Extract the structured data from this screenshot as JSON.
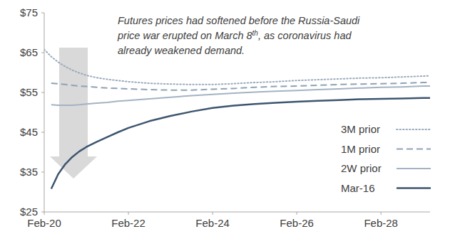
{
  "chart_data": {
    "type": "line",
    "annotation": [
      "Futures prices had softened before the Russia-Saudi",
      "price war erupted on March 8th, as coronavirus had",
      "already weakened demand."
    ],
    "x": [
      0,
      2,
      4,
      6,
      8,
      10,
      12,
      15,
      18,
      21,
      24,
      30,
      36,
      42,
      48,
      54,
      60,
      66,
      72,
      78,
      84,
      90,
      96,
      102,
      108,
      110
    ],
    "xlim": [
      0,
      110
    ],
    "xticks": [
      {
        "value": 0,
        "label": "Feb-20"
      },
      {
        "value": 24,
        "label": "Feb-22"
      },
      {
        "value": 48,
        "label": "Feb-24"
      },
      {
        "value": 72,
        "label": "Feb-26"
      },
      {
        "value": 96,
        "label": "Feb-28"
      }
    ],
    "ylim": [
      25,
      75
    ],
    "yticks": [
      {
        "value": 25,
        "label": "$25"
      },
      {
        "value": 35,
        "label": "$35"
      },
      {
        "value": 45,
        "label": "$45"
      },
      {
        "value": 55,
        "label": "$55"
      },
      {
        "value": 65,
        "label": "$65"
      },
      {
        "value": 75,
        "label": "$75"
      }
    ],
    "grid": false,
    "legend": "bottom-right",
    "series": [
      {
        "name": "3M prior",
        "color": "#9aabbd",
        "line_style": "dotted",
        "values": [
          65.8,
          64.0,
          62.6,
          61.5,
          60.6,
          59.9,
          59.3,
          58.7,
          58.3,
          58.0,
          57.7,
          57.3,
          57.1,
          57.0,
          57.0,
          57.2,
          57.5,
          57.7,
          58.0,
          58.2,
          58.4,
          58.6,
          58.7,
          58.9,
          59.1,
          59.2
        ]
      },
      {
        "name": "1M prior",
        "color": "#8fa2b5",
        "line_style": "dashed",
        "values": [
          null,
          57.3,
          57.2,
          57.0,
          56.8,
          56.6,
          56.5,
          56.3,
          56.1,
          56.0,
          55.9,
          55.7,
          55.6,
          55.6,
          55.8,
          56.0,
          56.3,
          56.5,
          56.6,
          56.8,
          57.0,
          57.1,
          57.2,
          57.3,
          57.5,
          57.5
        ]
      },
      {
        "name": "2W prior",
        "color": "#a3b3c3",
        "line_style": "solid",
        "values": [
          null,
          51.9,
          51.8,
          51.8,
          51.8,
          51.9,
          52.1,
          52.3,
          52.5,
          52.8,
          53.0,
          53.4,
          53.8,
          54.2,
          54.5,
          54.8,
          55.1,
          55.3,
          55.5,
          55.7,
          55.9,
          56.1,
          56.3,
          56.4,
          56.6,
          56.6
        ]
      },
      {
        "name": "Mar-16",
        "color": "#3d556f",
        "line_style": "solid",
        "values": [
          null,
          30.8,
          34.5,
          37.0,
          38.8,
          40.2,
          41.3,
          42.6,
          43.8,
          45.0,
          46.1,
          47.8,
          49.1,
          50.2,
          51.1,
          51.7,
          52.1,
          52.4,
          52.7,
          52.9,
          53.1,
          53.3,
          53.4,
          53.5,
          53.6,
          53.6
        ]
      }
    ]
  }
}
